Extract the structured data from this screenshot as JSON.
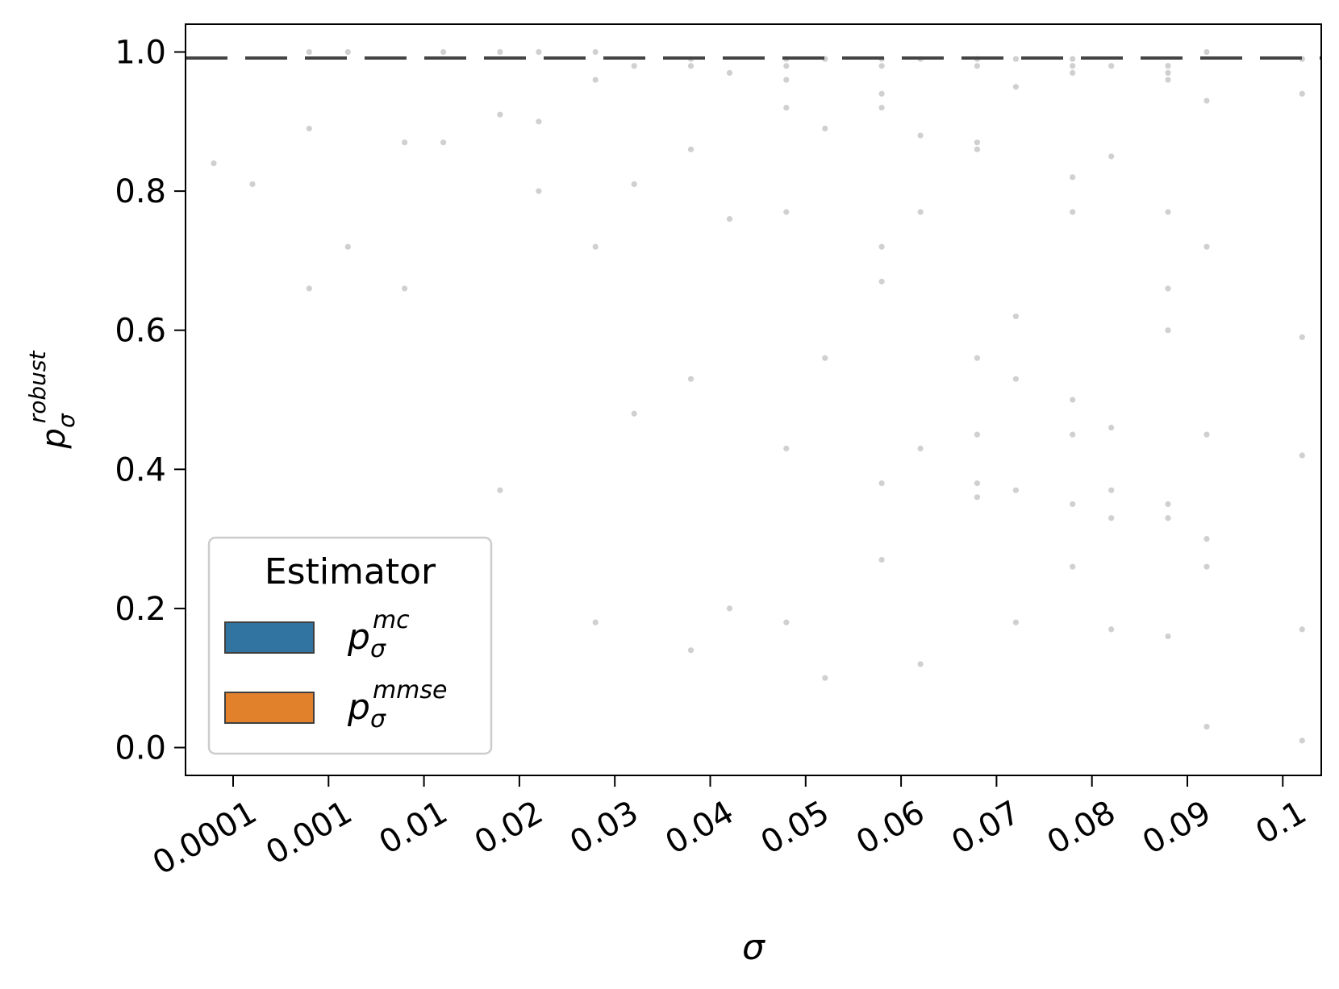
{
  "chart_data": {
    "type": "scatter",
    "title": "",
    "xlabel": "σ",
    "ylabel": {
      "base": "p",
      "sub": "σ",
      "sup": "robust"
    },
    "categories": [
      "0.0001",
      "0.001",
      "0.01",
      "0.02",
      "0.03",
      "0.04",
      "0.05",
      "0.06",
      "0.07",
      "0.08",
      "0.09",
      "0.1"
    ],
    "ylim": [
      -0.04,
      1.04
    ],
    "yticks": [
      "0.0",
      "0.2",
      "0.4",
      "0.6",
      "0.8",
      "1.0"
    ],
    "grid": false,
    "reference_line": {
      "y": 1.0,
      "style": "dashed",
      "color": "#444444"
    },
    "legend": {
      "title": "Estimator",
      "placement": "lower-left",
      "entries": [
        {
          "base": "p",
          "sub": "σ",
          "sup": "mc",
          "color": "#3274a1"
        },
        {
          "base": "p",
          "sub": "σ",
          "sup": "mmse",
          "color": "#e1812c"
        }
      ]
    },
    "series": [
      {
        "estimator": "mc",
        "color": "#3274a1",
        "points": [
          [
            "0.0001",
            0.84
          ],
          [
            "0.001",
            0.66
          ],
          [
            "0.001",
            0.89
          ],
          [
            "0.001",
            1.0
          ],
          [
            "0.01",
            0.66
          ],
          [
            "0.01",
            0.87
          ],
          [
            "0.02",
            0.37
          ],
          [
            "0.02",
            0.91
          ],
          [
            "0.02",
            1.0
          ],
          [
            "0.03",
            0.18
          ],
          [
            "0.03",
            0.72
          ],
          [
            "0.03",
            0.96
          ],
          [
            "0.03",
            1.0
          ],
          [
            "0.04",
            0.14
          ],
          [
            "0.04",
            0.53
          ],
          [
            "0.04",
            0.86
          ],
          [
            "0.04",
            0.98
          ],
          [
            "0.04",
            0.99
          ],
          [
            "0.05",
            0.18
          ],
          [
            "0.05",
            0.43
          ],
          [
            "0.05",
            0.77
          ],
          [
            "0.05",
            0.92
          ],
          [
            "0.05",
            0.96
          ],
          [
            "0.05",
            0.98
          ],
          [
            "0.05",
            0.99
          ],
          [
            "0.06",
            0.27
          ],
          [
            "0.06",
            0.38
          ],
          [
            "0.06",
            0.67
          ],
          [
            "0.06",
            0.72
          ],
          [
            "0.06",
            0.92
          ],
          [
            "0.06",
            0.94
          ],
          [
            "0.06",
            0.98
          ],
          [
            "0.06",
            0.99
          ],
          [
            "0.07",
            0.36
          ],
          [
            "0.07",
            0.38
          ],
          [
            "0.07",
            0.45
          ],
          [
            "0.07",
            0.56
          ],
          [
            "0.07",
            0.86
          ],
          [
            "0.07",
            0.87
          ],
          [
            "0.07",
            0.98
          ],
          [
            "0.07",
            0.99
          ],
          [
            "0.08",
            0.26
          ],
          [
            "0.08",
            0.35
          ],
          [
            "0.08",
            0.45
          ],
          [
            "0.08",
            0.5
          ],
          [
            "0.08",
            0.77
          ],
          [
            "0.08",
            0.82
          ],
          [
            "0.08",
            0.97
          ],
          [
            "0.08",
            0.98
          ],
          [
            "0.08",
            0.99
          ],
          [
            "0.09",
            0.16
          ],
          [
            "0.09",
            0.33
          ],
          [
            "0.09",
            0.35
          ],
          [
            "0.09",
            0.6
          ],
          [
            "0.09",
            0.66
          ],
          [
            "0.09",
            0.77
          ],
          [
            "0.09",
            0.96
          ],
          [
            "0.09",
            0.97
          ],
          [
            "0.09",
            0.98
          ]
        ]
      },
      {
        "estimator": "mmse",
        "color": "#e1812c",
        "points": [
          [
            "0.0001",
            0.81
          ],
          [
            "0.001",
            0.72
          ],
          [
            "0.001",
            1.0
          ],
          [
            "0.01",
            0.87
          ],
          [
            "0.01",
            1.0
          ],
          [
            "0.02",
            0.8
          ],
          [
            "0.02",
            0.9
          ],
          [
            "0.02",
            1.0
          ],
          [
            "0.03",
            0.48
          ],
          [
            "0.03",
            0.81
          ],
          [
            "0.03",
            0.98
          ],
          [
            "0.04",
            0.2
          ],
          [
            "0.04",
            0.76
          ],
          [
            "0.04",
            0.97
          ],
          [
            "0.05",
            0.1
          ],
          [
            "0.05",
            0.56
          ],
          [
            "0.05",
            0.89
          ],
          [
            "0.05",
            0.99
          ],
          [
            "0.06",
            0.12
          ],
          [
            "0.06",
            0.43
          ],
          [
            "0.06",
            0.77
          ],
          [
            "0.06",
            0.88
          ],
          [
            "0.06",
            0.99
          ],
          [
            "0.07",
            0.18
          ],
          [
            "0.07",
            0.37
          ],
          [
            "0.07",
            0.53
          ],
          [
            "0.07",
            0.62
          ],
          [
            "0.07",
            0.95
          ],
          [
            "0.07",
            0.99
          ],
          [
            "0.08",
            0.17
          ],
          [
            "0.08",
            0.33
          ],
          [
            "0.08",
            0.37
          ],
          [
            "0.08",
            0.46
          ],
          [
            "0.08",
            0.85
          ],
          [
            "0.08",
            0.98
          ],
          [
            "0.09",
            0.03
          ],
          [
            "0.09",
            0.26
          ],
          [
            "0.09",
            0.3
          ],
          [
            "0.09",
            0.45
          ],
          [
            "0.09",
            0.72
          ],
          [
            "0.09",
            0.93
          ],
          [
            "0.09",
            1.0
          ],
          [
            "0.1",
            0.01
          ],
          [
            "0.1",
            0.17
          ],
          [
            "0.1",
            0.42
          ],
          [
            "0.1",
            0.59
          ],
          [
            "0.1",
            0.94
          ],
          [
            "0.1",
            0.99
          ]
        ]
      }
    ]
  }
}
